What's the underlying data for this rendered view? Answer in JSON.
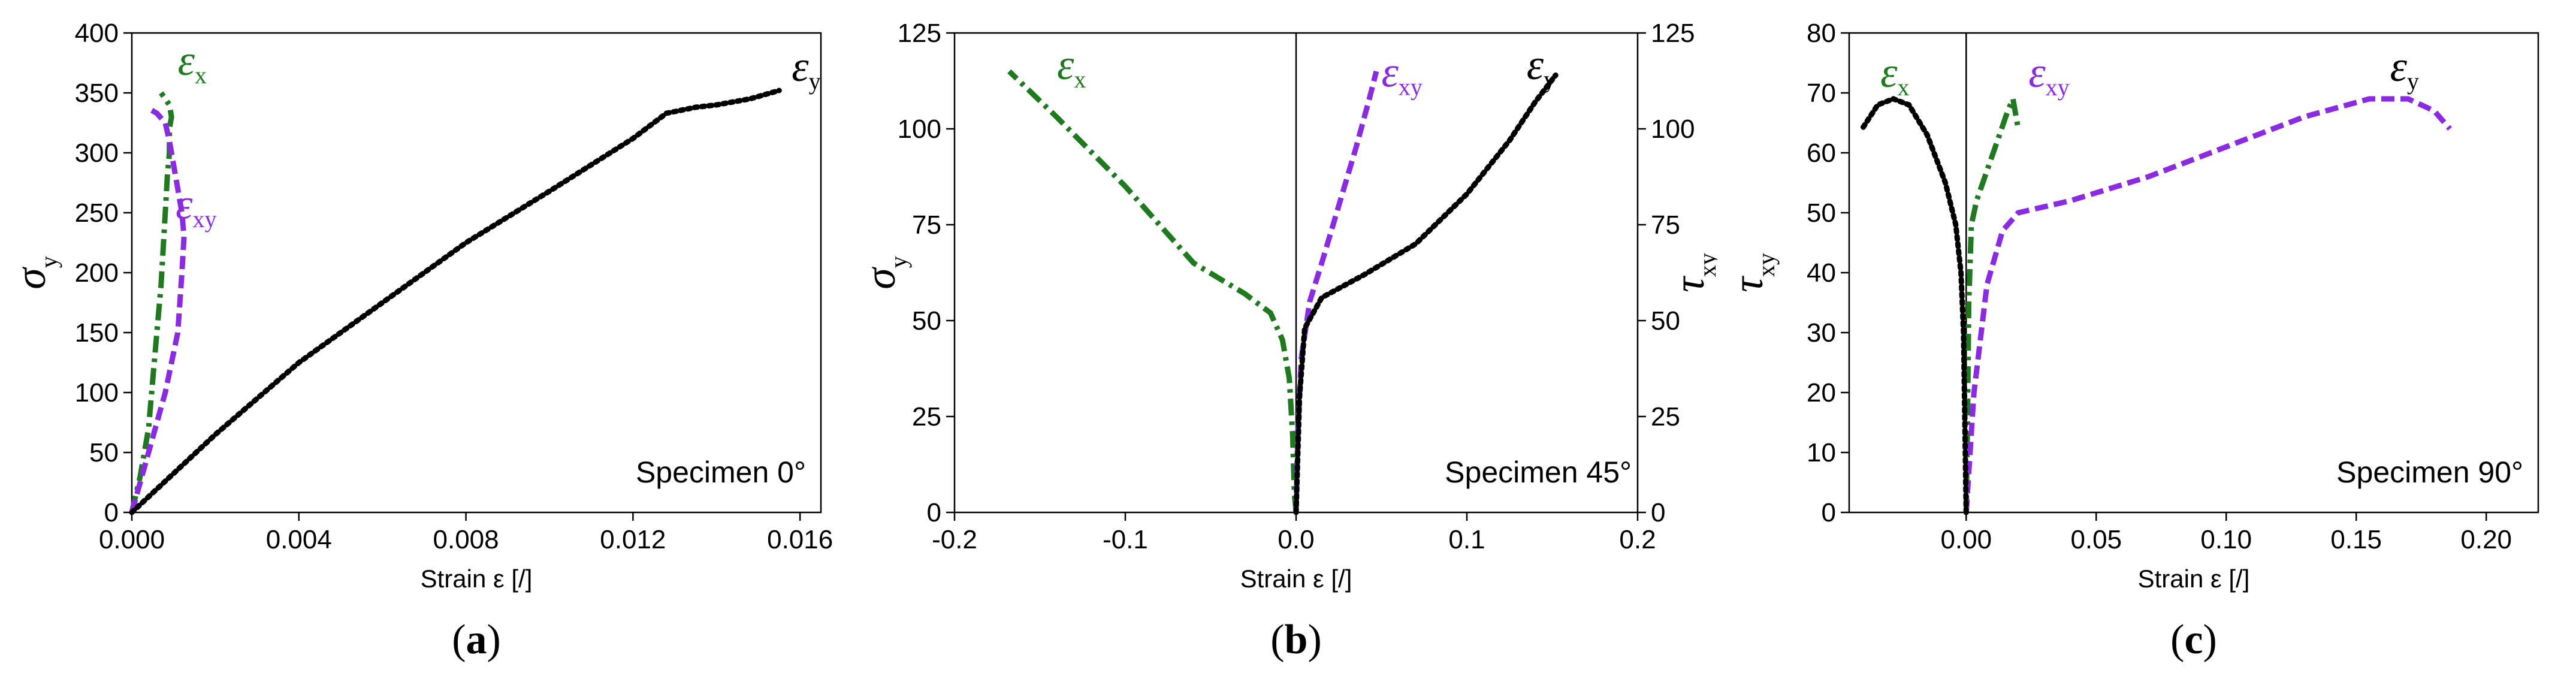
{
  "panel_labels": [
    "(a)",
    "(b)",
    "(c)"
  ],
  "chart_data": [
    {
      "type": "line",
      "title": "",
      "xlabel": "Strain ε [/]",
      "ylabel": "σy",
      "xlim": [
        0,
        0.0165
      ],
      "ylim": [
        0,
        400
      ],
      "xticks": [
        0.0,
        0.004,
        0.008,
        0.012,
        0.016
      ],
      "xtick_labels": [
        "0.000",
        "0.004",
        "0.008",
        "0.012",
        "0.016"
      ],
      "yticks": [
        0,
        50,
        100,
        150,
        200,
        250,
        300,
        350,
        400
      ],
      "ytick_labels": [
        "0",
        "50",
        "100",
        "150",
        "200",
        "250",
        "300",
        "350",
        "400"
      ],
      "annotation": "Specimen 0°",
      "grid": false,
      "series": [
        {
          "name": "εx",
          "label_main": "ε",
          "label_sub": "x",
          "color": "#1f7a1f",
          "style": "dashdot",
          "x": [
            0,
            0.0002,
            0.0004,
            0.0005,
            0.0006,
            0.0007,
            0.00075,
            0.0008,
            0.00085,
            0.0009,
            0.0009,
            0.00095,
            0.0009,
            0.0008,
            0.0007
          ],
          "y": [
            0,
            30,
            70,
            110,
            150,
            190,
            220,
            250,
            280,
            300,
            320,
            330,
            340,
            345,
            350
          ]
        },
        {
          "name": "εxy",
          "label_main": "ε",
          "label_sub": "xy",
          "color": "#8a2be2",
          "style": "dashed",
          "x": [
            0,
            0.0004,
            0.0008,
            0.0011,
            0.0012,
            0.00125,
            0.0012,
            0.0011,
            0.001,
            0.0009,
            0.0008,
            0.0006,
            0.0004
          ],
          "y": [
            0,
            50,
            100,
            150,
            200,
            230,
            250,
            270,
            290,
            310,
            325,
            333,
            337
          ]
        },
        {
          "name": "εy",
          "label_main": "ε",
          "label_sub": "y",
          "color": "#000000",
          "style": "dotted",
          "x": [
            0,
            0.002,
            0.004,
            0.006,
            0.008,
            0.01,
            0.012,
            0.0128,
            0.0135,
            0.014,
            0.0148,
            0.0155
          ],
          "y": [
            0,
            65,
            125,
            175,
            225,
            268,
            312,
            333,
            338,
            340,
            345,
            352
          ]
        }
      ],
      "series_label_positions": "εx near top at x≈0.001, εxy right of curves at σ≈250, εy top-right"
    },
    {
      "type": "line",
      "title": "",
      "xlabel": "Strain ε [/]",
      "ylabel": "σy",
      "ylabel_right": "τxy",
      "xlim": [
        -0.2,
        0.2
      ],
      "ylim": [
        0,
        125
      ],
      "xticks": [
        -0.2,
        -0.1,
        0.0,
        0.1,
        0.2
      ],
      "xtick_labels": [
        "-0.2",
        "-0.1",
        "0.0",
        "0.1",
        "0.2"
      ],
      "yticks": [
        0,
        25,
        50,
        75,
        100,
        125
      ],
      "ytick_labels": [
        "0",
        "25",
        "50",
        "75",
        "100",
        "125"
      ],
      "yticks_right": [
        0,
        25,
        50,
        75,
        100,
        125
      ],
      "ytick_labels_right": [
        "0",
        "25",
        "50",
        "75",
        "100",
        "125"
      ],
      "vline_x": 0,
      "annotation": "Specimen 45°",
      "grid": false,
      "series": [
        {
          "name": "εx",
          "label_main": "ε",
          "label_sub": "x",
          "color": "#1f7a1f",
          "style": "dashdot",
          "x": [
            0,
            -0.001,
            -0.002,
            -0.004,
            -0.008,
            -0.015,
            -0.03,
            -0.06,
            -0.1,
            -0.14,
            -0.168
          ],
          "y": [
            0,
            5,
            20,
            35,
            45,
            52,
            57,
            65,
            85,
            103,
            115
          ]
        },
        {
          "name": "εxy",
          "label_main": "ε",
          "label_sub": "xy",
          "color": "#8a2be2",
          "style": "dashed",
          "x": [
            0,
            0.001,
            0.003,
            0.008,
            0.015,
            0.025,
            0.035,
            0.043,
            0.047
          ],
          "y": [
            0,
            20,
            40,
            55,
            65,
            80,
            95,
            108,
            115
          ]
        },
        {
          "name": "εy",
          "label_main": "ε",
          "label_sub": "y",
          "color": "#000000",
          "style": "dotted",
          "x": [
            0,
            0.002,
            0.005,
            0.015,
            0.04,
            0.07,
            0.1,
            0.125,
            0.14,
            0.152
          ],
          "y": [
            0,
            30,
            48,
            56,
            62,
            70,
            83,
            97,
            107,
            114
          ]
        }
      ],
      "series_label_positions": "εx top-left, εxy upper middle-right, εy top-right"
    },
    {
      "type": "line",
      "title": "",
      "xlabel": "Strain ε [/]",
      "ylabel": "τxy",
      "xlim": [
        -0.045,
        0.22
      ],
      "ylim": [
        0,
        80
      ],
      "xticks": [
        0.0,
        0.05,
        0.1,
        0.15,
        0.2
      ],
      "xtick_labels": [
        "0.00",
        "0.05",
        "0.10",
        "0.15",
        "0.20"
      ],
      "yticks": [
        0,
        10,
        20,
        30,
        40,
        50,
        60,
        70,
        80
      ],
      "ytick_labels": [
        "0",
        "10",
        "20",
        "30",
        "40",
        "50",
        "60",
        "70",
        "80"
      ],
      "vline_x": 0,
      "annotation": "Specimen 90°",
      "grid": false,
      "series": [
        {
          "name": "εx",
          "label_main": "ε",
          "label_sub": "x",
          "color": "#1f7a1f",
          "style": "dashdot",
          "x": [
            0,
            0.0005,
            0.001,
            0.002,
            0.004,
            0.008,
            0.012,
            0.016,
            0.018,
            0.02
          ],
          "y": [
            0,
            15,
            35,
            48,
            52,
            57,
            62,
            67,
            69,
            64
          ]
        },
        {
          "name": "εxy",
          "label_main": "ε",
          "label_sub": "xy",
          "color": "#8a2be2",
          "style": "dashed",
          "x": [
            0,
            0.003,
            0.008,
            0.014,
            0.02,
            0.04,
            0.07,
            0.1,
            0.13,
            0.155,
            0.17,
            0.18,
            0.186
          ],
          "y": [
            0,
            20,
            38,
            47,
            50,
            52,
            56,
            61,
            66,
            69,
            69,
            67,
            64
          ]
        },
        {
          "name": "εy",
          "label_main": "ε",
          "label_sub": "y",
          "color": "#000000",
          "style": "dotted",
          "x": [
            0,
            -0.0005,
            -0.001,
            -0.002,
            -0.004,
            -0.008,
            -0.015,
            -0.022,
            -0.028,
            -0.034,
            -0.04
          ],
          "y": [
            0,
            15,
            30,
            40,
            48,
            55,
            63,
            68,
            69,
            68,
            64
          ]
        }
      ],
      "series_label_positions": "εy top-left, εx top near center-left, εxy top-right"
    }
  ]
}
